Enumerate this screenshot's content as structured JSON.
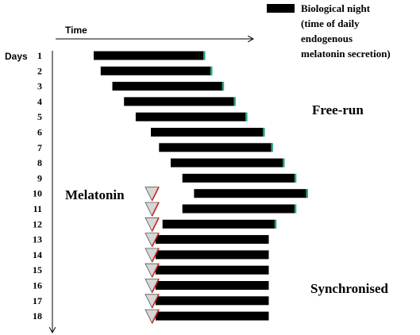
{
  "legend": {
    "label_lines": [
      "Biological night",
      "(time of daily",
      "endogenous",
      "melatonin secretion)"
    ],
    "swatch_color": "#000000"
  },
  "time_axis": {
    "label": "Time"
  },
  "days_axis": {
    "label": "Days"
  },
  "labels": {
    "free_run": "Free-run",
    "melatonin": "Melatonin",
    "synchronised": "Synchronised"
  },
  "colors": {
    "bar": "#000000",
    "bar_tip": "#2aa58a",
    "triangle_fill": "#d6d6d6",
    "triangle_stroke": "#555555",
    "triangle_accent": "#cc1f1a"
  },
  "days": [
    {
      "day": "1",
      "start": 0.0,
      "end": 9.5,
      "phase": "free-run",
      "melatonin": false
    },
    {
      "day": "2",
      "start": 0.6,
      "end": 10.1,
      "phase": "free-run",
      "melatonin": false
    },
    {
      "day": "3",
      "start": 1.6,
      "end": 11.1,
      "phase": "free-run",
      "melatonin": false
    },
    {
      "day": "4",
      "start": 2.6,
      "end": 12.1,
      "phase": "free-run",
      "melatonin": false
    },
    {
      "day": "5",
      "start": 3.6,
      "end": 13.1,
      "phase": "free-run",
      "melatonin": false
    },
    {
      "day": "6",
      "start": 4.9,
      "end": 14.6,
      "phase": "free-run",
      "melatonin": false
    },
    {
      "day": "7",
      "start": 5.6,
      "end": 15.3,
      "phase": "free-run",
      "melatonin": false
    },
    {
      "day": "8",
      "start": 6.6,
      "end": 16.3,
      "phase": "free-run",
      "melatonin": false
    },
    {
      "day": "9",
      "start": 7.6,
      "end": 17.3,
      "phase": "free-run",
      "melatonin": false
    },
    {
      "day": "10",
      "start": 8.6,
      "end": 18.3,
      "phase": "free-run",
      "melatonin": true
    },
    {
      "day": "11",
      "start": 7.6,
      "end": 17.3,
      "phase": "free-run",
      "melatonin": true
    },
    {
      "day": "12",
      "start": 5.9,
      "end": 15.6,
      "phase": "free-run",
      "melatonin": true
    },
    {
      "day": "13",
      "start": 5.3,
      "end": 15.0,
      "phase": "synchronised",
      "melatonin": true
    },
    {
      "day": "14",
      "start": 5.3,
      "end": 15.0,
      "phase": "synchronised",
      "melatonin": true
    },
    {
      "day": "15",
      "start": 5.3,
      "end": 15.0,
      "phase": "synchronised",
      "melatonin": true
    },
    {
      "day": "16",
      "start": 5.3,
      "end": 15.0,
      "phase": "synchronised",
      "melatonin": true
    },
    {
      "day": "17",
      "start": 5.3,
      "end": 15.0,
      "phase": "synchronised",
      "melatonin": true
    },
    {
      "day": "18",
      "start": 5.3,
      "end": 15.0,
      "phase": "synchronised",
      "melatonin": true
    }
  ]
}
